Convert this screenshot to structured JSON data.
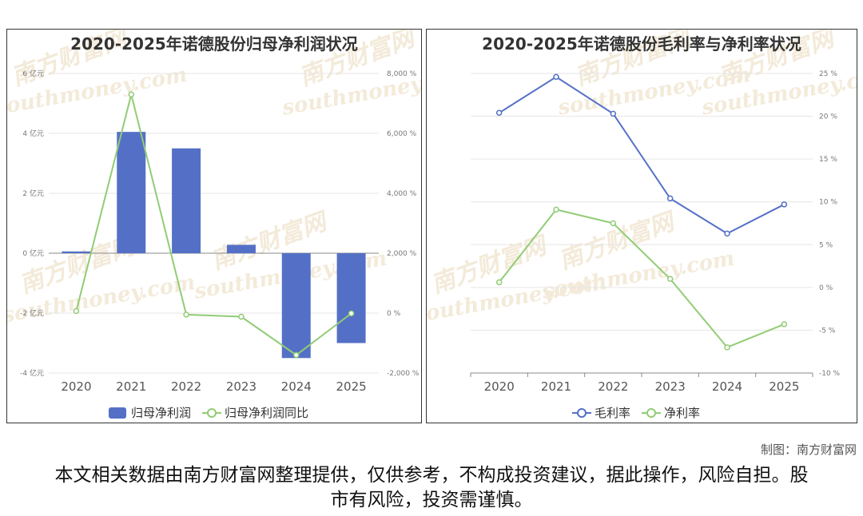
{
  "colors": {
    "bar": "#5470c6",
    "line_green": "#91cc75",
    "line_blue": "#5470c6",
    "watermark": "#f3ead9"
  },
  "watermark": {
    "cn": "南方财富网",
    "en": "southmoney.com"
  },
  "chart_data": [
    {
      "type": "bar+line",
      "title": "2020-2025年诺德股份归母净利润状况",
      "categories": [
        "2020",
        "2021",
        "2022",
        "2023",
        "2024",
        "2025"
      ],
      "left_axis": {
        "ylim": [
          -4,
          6
        ],
        "ticks": [
          "-4 亿元",
          "-2 亿元",
          "0 亿元",
          "2 亿元",
          "4 亿元",
          "6 亿元"
        ]
      },
      "right_axis": {
        "ylim": [
          -2000,
          8000
        ],
        "ticks": [
          "-2,000 %",
          "0 %",
          "2,000 %",
          "4,000 %",
          "6,000 %",
          "8,000 %"
        ]
      },
      "series": [
        {
          "name": "归母净利润",
          "type": "bar",
          "axis": "left",
          "values": [
            0.06,
            4.05,
            3.5,
            0.28,
            -3.5,
            -3.0
          ]
        },
        {
          "name": "归母净利润同比",
          "type": "line",
          "axis": "right",
          "values": [
            70,
            7300,
            -50,
            -120,
            -1400,
            -10
          ]
        }
      ],
      "legend_position": "bottom",
      "grid": true
    },
    {
      "type": "line",
      "title": "2020-2025年诺德股份毛利率与净利率状况",
      "categories": [
        "2020",
        "2021",
        "2022",
        "2023",
        "2024",
        "2025"
      ],
      "right_axis": {
        "ylim": [
          -10,
          25
        ],
        "ticks": [
          "-10 %",
          "-5 %",
          "0 %",
          "5 %",
          "10 %",
          "15 %",
          "20 %",
          "25 %"
        ]
      },
      "series": [
        {
          "name": "毛利率",
          "values": [
            20.4,
            24.6,
            20.3,
            10.4,
            6.3,
            9.7
          ]
        },
        {
          "name": "净利率",
          "values": [
            0.6,
            9.1,
            7.5,
            1.0,
            -7.0,
            -4.3
          ]
        }
      ],
      "legend_position": "bottom",
      "grid": true
    }
  ],
  "footer": {
    "credit": "制图：南方财富网",
    "disclaimer": "本文相关数据由南方财富网整理提供，仅供参考，不构成投资建议，据此操作，风险自担。股市有风险，投资需谨慎。"
  }
}
